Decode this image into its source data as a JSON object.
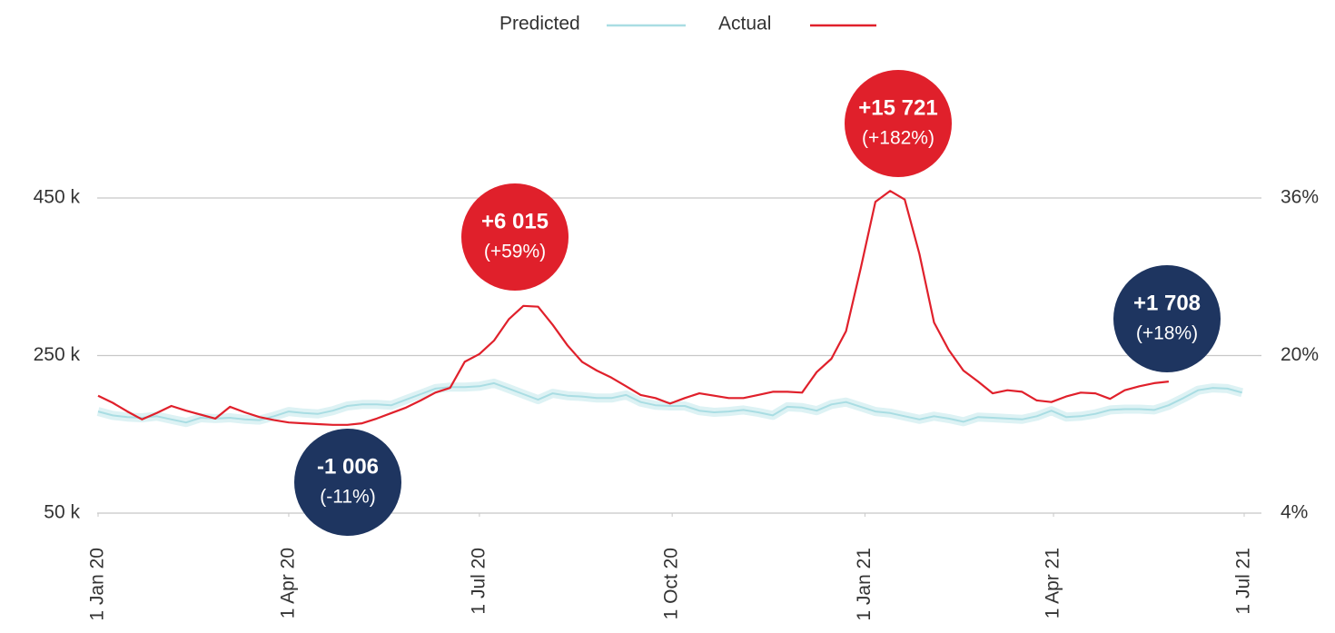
{
  "chart_data": {
    "type": "line",
    "x": [
      "2020-01-01",
      "2020-01-08",
      "2020-01-15",
      "2020-01-22",
      "2020-01-29",
      "2020-02-05",
      "2020-02-12",
      "2020-02-19",
      "2020-02-26",
      "2020-03-04",
      "2020-03-11",
      "2020-03-18",
      "2020-03-25",
      "2020-04-01",
      "2020-04-08",
      "2020-04-15",
      "2020-04-22",
      "2020-04-29",
      "2020-05-06",
      "2020-05-13",
      "2020-05-20",
      "2020-05-27",
      "2020-06-03",
      "2020-06-10",
      "2020-06-17",
      "2020-06-24",
      "2020-07-01",
      "2020-07-08",
      "2020-07-15",
      "2020-07-22",
      "2020-07-29",
      "2020-08-05",
      "2020-08-12",
      "2020-08-19",
      "2020-08-26",
      "2020-09-02",
      "2020-09-09",
      "2020-09-16",
      "2020-09-23",
      "2020-09-30",
      "2020-10-07",
      "2020-10-14",
      "2020-10-21",
      "2020-10-28",
      "2020-11-04",
      "2020-11-11",
      "2020-11-18",
      "2020-11-25",
      "2020-12-02",
      "2020-12-09",
      "2020-12-16",
      "2020-12-23",
      "2020-12-30",
      "2021-01-06",
      "2021-01-13",
      "2021-01-20",
      "2021-01-27",
      "2021-02-03",
      "2021-02-10",
      "2021-02-17",
      "2021-02-24",
      "2021-03-03",
      "2021-03-10",
      "2021-03-17",
      "2021-03-24",
      "2021-03-31",
      "2021-04-07",
      "2021-04-14",
      "2021-04-21",
      "2021-04-28",
      "2021-05-05",
      "2021-05-12",
      "2021-05-19",
      "2021-05-26",
      "2021-06-02",
      "2021-06-09",
      "2021-06-16",
      "2021-06-23",
      "2021-06-30"
    ],
    "series": [
      {
        "name": "Predicted",
        "color": "#a9dde3",
        "values": [
          179000,
          174000,
          172000,
          171000,
          173000,
          169000,
          165000,
          171000,
          170000,
          171000,
          169000,
          168000,
          173000,
          179000,
          177000,
          176000,
          180000,
          186000,
          188000,
          188000,
          187000,
          194000,
          201000,
          208000,
          210000,
          210000,
          211000,
          215000,
          208000,
          201000,
          194000,
          202000,
          199000,
          198000,
          196000,
          196000,
          200000,
          191000,
          187000,
          186000,
          186000,
          180000,
          178000,
          179000,
          181000,
          178000,
          174000,
          185000,
          184000,
          180000,
          188000,
          191000,
          185000,
          179000,
          177000,
          173000,
          169000,
          173000,
          170000,
          166000,
          172000,
          171000,
          170000,
          169000,
          173000,
          180000,
          172000,
          173000,
          176000,
          181000,
          182000,
          182000,
          181000,
          187000,
          196000,
          206000,
          209000,
          208000,
          203000
        ]
      },
      {
        "name": "Actual",
        "color": "#e0202b",
        "values": [
          199000,
          190000,
          179000,
          169000,
          177000,
          186000,
          180000,
          175000,
          170000,
          185000,
          178000,
          172000,
          168000,
          165000,
          164000,
          163000,
          162000,
          162000,
          164000,
          170000,
          177000,
          184000,
          193000,
          203000,
          209000,
          242000,
          252000,
          269000,
          296000,
          313000,
          312000,
          289000,
          263000,
          242000,
          231000,
          222000,
          211000,
          200000,
          196000,
          189000,
          196000,
          202000,
          199000,
          196000,
          196000,
          200000,
          204000,
          204000,
          203000,
          229000,
          246000,
          281000,
          361000,
          445000,
          459000,
          448000,
          379000,
          292000,
          257000,
          231000,
          217000,
          202000,
          206000,
          204000,
          193000,
          191000,
          198000,
          203000,
          202000,
          195000,
          206000,
          211000,
          215000,
          217000,
          null,
          null,
          null,
          null,
          null
        ]
      }
    ],
    "xlim": [
      "2020-01-01",
      "2021-07-01"
    ],
    "xticks": [
      {
        "value": "2020-01-01",
        "label": "1 Jan 20"
      },
      {
        "value": "2020-04-01",
        "label": "1 Apr 20"
      },
      {
        "value": "2020-07-01",
        "label": "1 Jul 20"
      },
      {
        "value": "2020-10-01",
        "label": "1 Oct 20"
      },
      {
        "value": "2021-01-01",
        "label": "1 Jan 21"
      },
      {
        "value": "2021-04-01",
        "label": "1 Apr 21"
      },
      {
        "value": "2021-07-01",
        "label": "1 Jul 21"
      }
    ],
    "ylim": [
      50000,
      550000
    ],
    "yticks": [
      {
        "value": 50000,
        "label": "50 k"
      },
      {
        "value": 250000,
        "label": "250 k"
      },
      {
        "value": 450000,
        "label": "450 k"
      }
    ],
    "y2lim": [
      4,
      44
    ],
    "y2ticks": [
      {
        "value": 4,
        "label": "4%"
      },
      {
        "value": 20,
        "label": "20%"
      },
      {
        "value": 36,
        "label": "36%"
      }
    ],
    "grid": true,
    "annotations": [
      {
        "text": "+6 015",
        "subtext": "(+59%)",
        "color": "#e0202b"
      },
      {
        "text": "-1 006",
        "subtext": "(-11%)",
        "color": "#1e3560"
      },
      {
        "text": "+15 721",
        "subtext": "(+182%)",
        "color": "#e0202b"
      },
      {
        "text": "+1 708",
        "subtext": "(+18%)",
        "color": "#1e3560"
      }
    ]
  }
}
